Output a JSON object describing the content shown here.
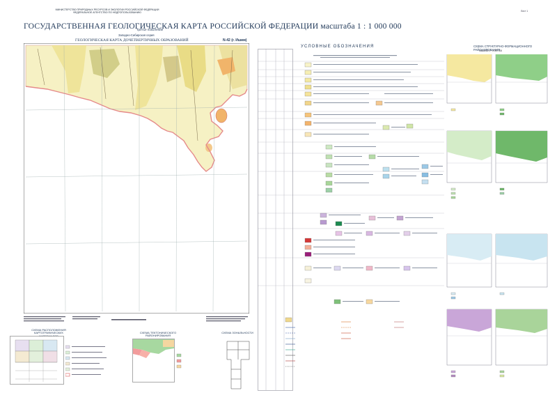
{
  "header": {
    "ministry_line1": "МИНИСТЕРСТВО ПРИРОДНЫХ РЕСУРСОВ И ЭКОЛОГИИ РОССИЙСКОЙ ФЕДЕРАЦИИ",
    "ministry_line2": "ФЕДЕРАЛЬНОЕ АГЕНТСТВО ПО НЕДРОПОЛЬЗОВАНИЮ",
    "title": "ГОСУДАРСТВЕННАЯ ГЕОЛОГИЧЕСКАЯ КАРТА РОССИЙСКОЙ ФЕДЕРАЦИИ масштаба 1 : 1 000 000",
    "edition": "Третье поколение",
    "series": "Западно-Сибирская серия",
    "map_title": "ГЕОЛОГИЧЕСКАЯ КАРТА ДОЧЕТВЕРТИЧНЫХ ОБРАЗОВАНИЙ",
    "sheet": "N-42 (г. Ишим)",
    "page": "Лист 1"
  },
  "legend": {
    "title": "УСЛОВНЫЕ ОБОЗНАЧЕНИЯ"
  },
  "structure_panel": {
    "title": "СХЕМА СТРУКТУРНО-ФОРМАЦИОННОГО РАЙОНИРОВАНИЯ",
    "scale": "Масштаб 1 : 5 000 000"
  },
  "insets": {
    "inset1_title": "СХЕМА РАСПОЛОЖЕНИЯ КАРТОГРАФИЧЕСКИХ МАТЕРИАЛОВ",
    "inset2_title": "СХЕМА ТЕКТОНИЧЕСКОГО РАЙОНИРОВАНИЯ",
    "inset3_title": "СХЕМА ЗОНАЛЬНОСТИ"
  },
  "colors": {
    "map_base": "#f6f1c4",
    "map_yellow": "#efe49a",
    "map_olive": "#c9c67a",
    "map_orange": "#f1b46a",
    "map_border_pink": "#e58a8a",
    "title_blue": "#223a5a",
    "legend_green": "#7fc17a",
    "legend_violet": "#b48ac0"
  }
}
